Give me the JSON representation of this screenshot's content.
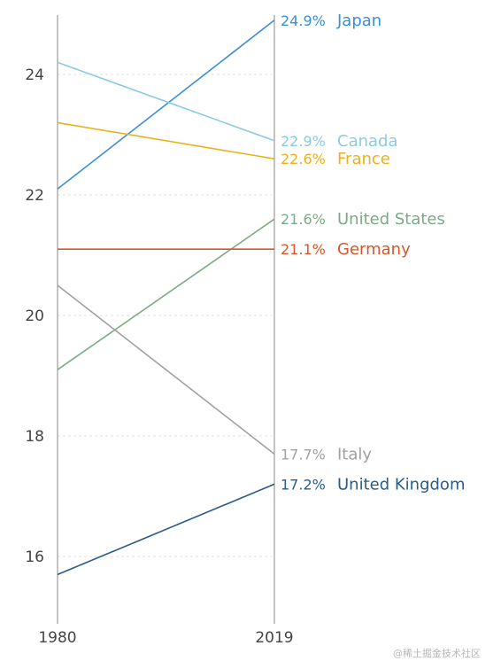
{
  "chart_data": {
    "type": "line",
    "x": [
      "1980",
      "2019"
    ],
    "ylim": [
      15,
      25
    ],
    "yticks": [
      16,
      18,
      20,
      22,
      24
    ],
    "grid": true,
    "series": [
      {
        "name": "Japan",
        "values": [
          22.1,
          24.9
        ],
        "label": "24.9%",
        "color": "#3a8fd6"
      },
      {
        "name": "Canada",
        "values": [
          24.2,
          22.9
        ],
        "label": "22.9%",
        "color": "#8ccbe3"
      },
      {
        "name": "France",
        "values": [
          23.2,
          22.6
        ],
        "label": "22.6%",
        "color": "#ebb11c"
      },
      {
        "name": "United States",
        "values": [
          19.1,
          21.6
        ],
        "label": "21.6%",
        "color": "#7bab86"
      },
      {
        "name": "Germany",
        "values": [
          21.1,
          21.1
        ],
        "label": "21.1%",
        "color": "#d9562b"
      },
      {
        "name": "Italy",
        "values": [
          20.5,
          17.7
        ],
        "label": "17.7%",
        "color": "#a1a1a1"
      },
      {
        "name": "United Kingdom",
        "values": [
          15.7,
          17.2
        ],
        "label": "17.2%",
        "color": "#2b5c88"
      }
    ]
  },
  "watermark": "@稀土掘金技术社区"
}
